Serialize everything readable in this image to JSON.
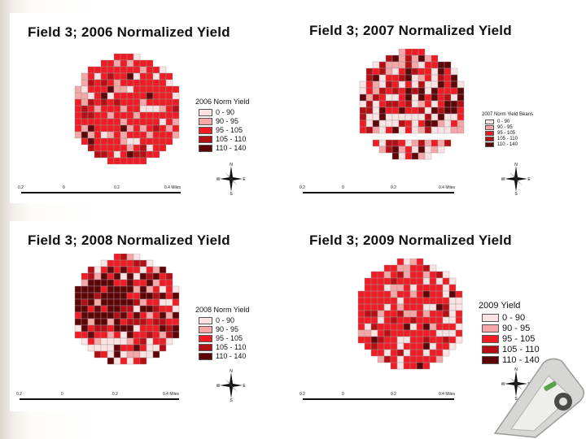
{
  "slide": {
    "panels": [
      {
        "id": "p2006",
        "title": "Field 3; 2006 Normalized Yield",
        "legend_title": "2006 Norm Yield",
        "legend_items": [
          "0 - 90",
          "90 - 95",
          "95 - 105",
          "105 - 110",
          "110 - 140"
        ],
        "scale_ticks": [
          "0.2",
          "0",
          "0.2",
          "0.4 Miles"
        ],
        "field_shape": "circle",
        "seed": 11,
        "weights": [
          0.08,
          0.12,
          0.66,
          0.1,
          0.04
        ]
      },
      {
        "id": "p2007",
        "title": "Field 3; 2007 Normalized Yield",
        "legend_title": "2007 Norm Yield Beans",
        "legend_items": [
          "0 - 90",
          "90 - 95",
          "95 - 105",
          "105 - 110",
          "110 - 140"
        ],
        "scale_ticks": [
          "0.2",
          "0",
          "0.2",
          "0.4 Miles"
        ],
        "field_shape": "cut-circle",
        "seed": 23,
        "weights": [
          0.16,
          0.14,
          0.28,
          0.2,
          0.22
        ]
      },
      {
        "id": "p2008",
        "title": "Field 3; 2008 Normalized Yield",
        "legend_title": "2008 Norm Yield",
        "legend_items": [
          "0 - 90",
          "90 - 95",
          "95 - 105",
          "105 - 110",
          "110 - 140"
        ],
        "scale_ticks": [
          "0.2",
          "0",
          "0.2",
          "0.4 Miles"
        ],
        "field_shape": "circle",
        "seed": 37,
        "weights": [
          0.12,
          0.1,
          0.34,
          0.2,
          0.24
        ]
      },
      {
        "id": "p2009",
        "title": "Field 3; 2009 Normalized Yield",
        "legend_title": "2009 Yield",
        "legend_items": [
          "0 - 90",
          "90 - 95",
          "95 - 105",
          "105 - 110",
          "110 - 140"
        ],
        "scale_ticks": [
          "0.2",
          "0",
          "0.2",
          "0.4 Miles"
        ],
        "field_shape": "circle",
        "seed": 53,
        "weights": [
          0.1,
          0.1,
          0.62,
          0.12,
          0.06
        ]
      }
    ],
    "legend_colors": [
      "#fbe3e3",
      "#f5a7a7",
      "#ee1c24",
      "#b30f14",
      "#5e0508"
    ],
    "compass_letters": {
      "n": "N",
      "s": "S",
      "e": "E",
      "w": "W"
    }
  }
}
